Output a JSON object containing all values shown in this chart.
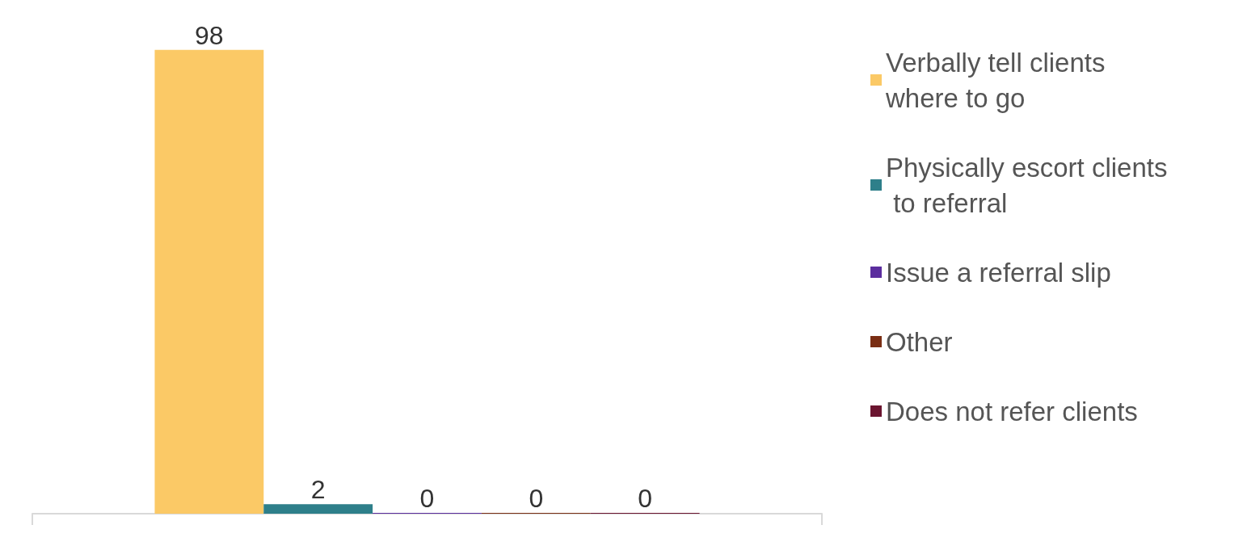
{
  "chart_data": {
    "type": "bar",
    "categories": [
      null
    ],
    "data_labels": true,
    "legend": "right",
    "grid": false,
    "series": [
      {
        "name": "Verbally tell clients where to go",
        "color": "#fbc966",
        "values": [
          98
        ]
      },
      {
        "name": "Physically escort clients to referral",
        "color": "#2e7f8a",
        "values": [
          2
        ]
      },
      {
        "name": "Issue a referral slip",
        "color": "#5b2d9e",
        "values": [
          0
        ]
      },
      {
        "name": "Other",
        "color": "#7a2e14",
        "values": [
          0
        ]
      },
      {
        "name": "Does not refer clients",
        "color": "#6b1530",
        "values": [
          0
        ]
      }
    ]
  }
}
